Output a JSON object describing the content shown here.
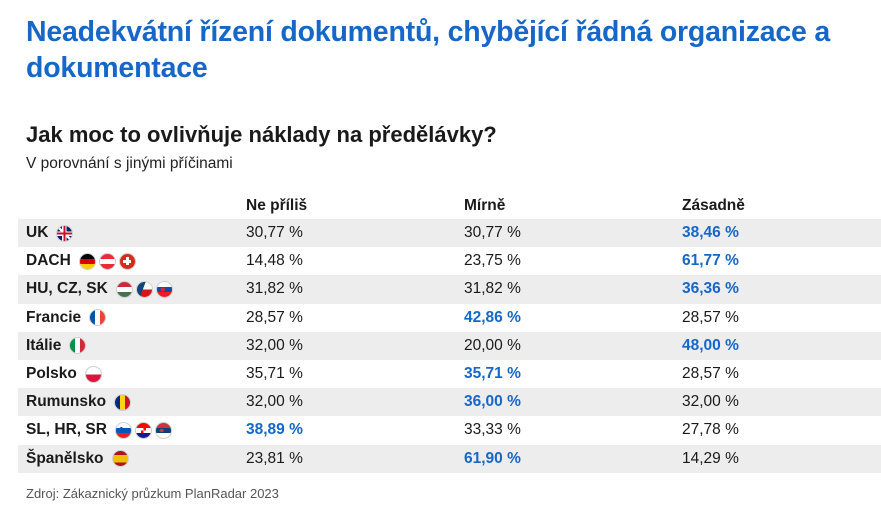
{
  "title": "Neadekvátní řízení dokumentů, chybějící řádná organizace a dokumentace",
  "subtitle": "Jak moc to ovlivňuje náklady na předělávky?",
  "description": "V porovnání s jinými příčinami",
  "source": "Zdroj: Zákaznický průzkum PlanRadar 2023",
  "colors": {
    "title": "#1667c8",
    "highlight": "#1667c8",
    "row_shade": "#ededed"
  },
  "chart_data": {
    "type": "table",
    "columns": [
      "Ne příliš",
      "Mírně",
      "Zásadně"
    ],
    "rows": [
      {
        "label": "UK",
        "flags": [
          "flag-uk-icon"
        ],
        "values": [
          "30,77 %",
          "30,77 %",
          "38,46 %"
        ],
        "highlight": 2
      },
      {
        "label": "DACH",
        "flags": [
          "flag-de-icon",
          "flag-at-icon",
          "flag-ch-icon"
        ],
        "values": [
          "14,48 %",
          "23,75 %",
          "61,77 %"
        ],
        "highlight": 2
      },
      {
        "label": "HU, CZ, SK",
        "flags": [
          "flag-hu-icon",
          "flag-cz-icon",
          "flag-sk-icon"
        ],
        "values": [
          "31,82 %",
          "31,82 %",
          "36,36 %"
        ],
        "highlight": 2
      },
      {
        "label": "Francie",
        "flags": [
          "flag-fr-icon"
        ],
        "values": [
          "28,57 %",
          "42,86 %",
          "28,57 %"
        ],
        "highlight": 1
      },
      {
        "label": "Itálie",
        "flags": [
          "flag-it-icon"
        ],
        "values": [
          "32,00 %",
          "20,00 %",
          "48,00 %"
        ],
        "highlight": 2
      },
      {
        "label": "Polsko",
        "flags": [
          "flag-pl-icon"
        ],
        "values": [
          "35,71 %",
          "35,71 %",
          "28,57 %"
        ],
        "highlight": 1
      },
      {
        "label": "Rumunsko",
        "flags": [
          "flag-ro-icon"
        ],
        "values": [
          "32,00 %",
          "36,00 %",
          "32,00 %"
        ],
        "highlight": 1
      },
      {
        "label": "SL, HR, SR",
        "flags": [
          "flag-si-icon",
          "flag-hr-icon",
          "flag-rs-icon"
        ],
        "values": [
          "38,89 %",
          "33,33 %",
          "27,78 %"
        ],
        "highlight": 0
      },
      {
        "label": "Španělsko",
        "flags": [
          "flag-es-icon"
        ],
        "values": [
          "23,81 %",
          "61,90 %",
          "14,29 %"
        ],
        "highlight": 1
      }
    ]
  }
}
